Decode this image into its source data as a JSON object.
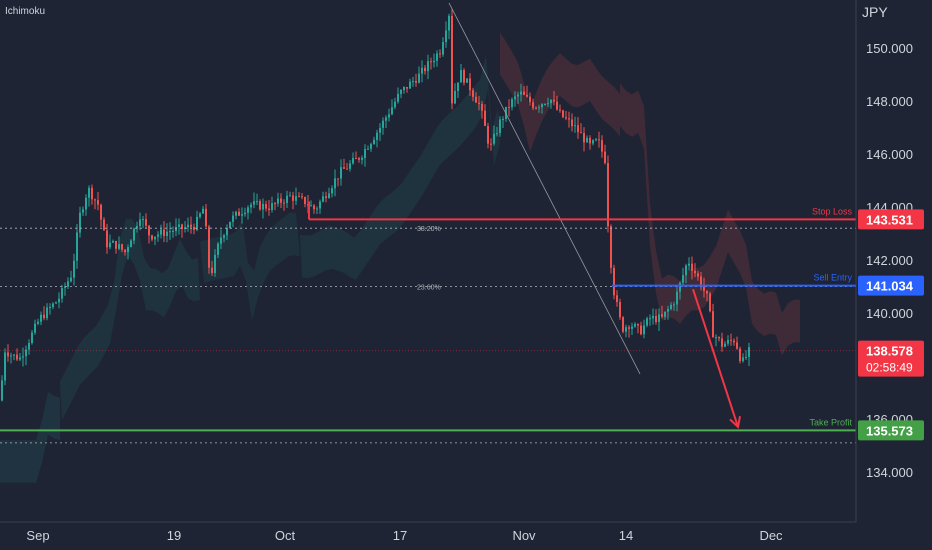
{
  "indicator_label": "Ichimoku",
  "currency": "JPY",
  "chart_data": {
    "type": "candlestick",
    "y_axis": {
      "min": 132.0,
      "max": 152.3,
      "ticks": [
        "150.000",
        "148.000",
        "146.000",
        "144.000",
        "142.000",
        "140.000",
        "136.000",
        "134.000"
      ]
    },
    "x_axis": {
      "labels": [
        "Sep",
        "19",
        "Oct",
        "17",
        "Nov",
        "14",
        "Dec"
      ],
      "label_days": [
        1,
        19,
        3,
        17,
        1,
        14,
        1
      ]
    },
    "levels": {
      "stop_loss": {
        "label": "Stop Loss",
        "value": 143.531,
        "value_text": "143.531",
        "color": "#f23645"
      },
      "sell_entry": {
        "label": "Sell Entry",
        "value": 141.034,
        "value_text": "141.034",
        "color": "#2962ff"
      },
      "take_profit": {
        "label": "Take Profit",
        "value": 135.573,
        "value_text": "135.573",
        "color": "#4caf50"
      },
      "current": {
        "value": 138.578,
        "value_text": "138.578",
        "countdown": "02:58:49",
        "color": "#f23645"
      }
    },
    "fibonacci": [
      {
        "label": "38.20%",
        "value": 143.2
      },
      {
        "label": "23.60%",
        "value": 141.0
      }
    ],
    "extra_dotted_level": 135.1,
    "trend_line": {
      "from": 151.7,
      "to": 137.7
    },
    "arrow": {
      "from": 140.9,
      "to": 135.7
    },
    "colors": {
      "up": "#26a69a",
      "down": "#ef5350",
      "background": "#1e2433"
    },
    "path_points": [
      [
        0,
        136.7
      ],
      [
        5,
        138.6
      ],
      [
        12,
        138.4
      ],
      [
        20,
        138.3
      ],
      [
        40,
        139.8
      ],
      [
        58,
        140.5
      ],
      [
        72,
        141.5
      ],
      [
        80,
        143.7
      ],
      [
        88,
        144.7
      ],
      [
        98,
        144.1
      ],
      [
        106,
        142.6
      ],
      [
        115,
        142.6
      ],
      [
        125,
        142.3
      ],
      [
        140,
        143.7
      ],
      [
        150,
        142.9
      ],
      [
        170,
        143.1
      ],
      [
        195,
        143.3
      ],
      [
        204,
        144.0
      ],
      [
        210,
        141.3
      ],
      [
        220,
        142.8
      ],
      [
        230,
        143.5
      ],
      [
        250,
        144.1
      ],
      [
        270,
        144.0
      ],
      [
        290,
        144.4
      ],
      [
        305,
        144.2
      ],
      [
        315,
        143.9
      ],
      [
        340,
        145.3
      ],
      [
        360,
        145.9
      ],
      [
        380,
        147.0
      ],
      [
        400,
        148.3
      ],
      [
        420,
        149.0
      ],
      [
        440,
        149.9
      ],
      [
        449,
        151.3
      ],
      [
        452,
        148.0
      ],
      [
        460,
        149.1
      ],
      [
        470,
        148.5
      ],
      [
        480,
        147.8
      ],
      [
        490,
        146.2
      ],
      [
        500,
        147.2
      ],
      [
        510,
        147.9
      ],
      [
        520,
        148.3
      ],
      [
        535,
        147.8
      ],
      [
        550,
        148.1
      ],
      [
        560,
        147.5
      ],
      [
        575,
        147.0
      ],
      [
        590,
        146.3
      ],
      [
        598,
        146.5
      ],
      [
        605,
        145.8
      ],
      [
        609,
        142.6
      ],
      [
        614,
        140.8
      ],
      [
        622,
        139.4
      ],
      [
        630,
        139.6
      ],
      [
        640,
        139.3
      ],
      [
        650,
        139.8
      ],
      [
        662,
        139.8
      ],
      [
        675,
        140.5
      ],
      [
        688,
        142.0
      ],
      [
        700,
        141.2
      ],
      [
        708,
        140.5
      ],
      [
        712,
        139.3
      ],
      [
        722,
        138.8
      ],
      [
        735,
        139.0
      ],
      [
        742,
        138.1
      ],
      [
        750,
        138.6
      ]
    ]
  }
}
